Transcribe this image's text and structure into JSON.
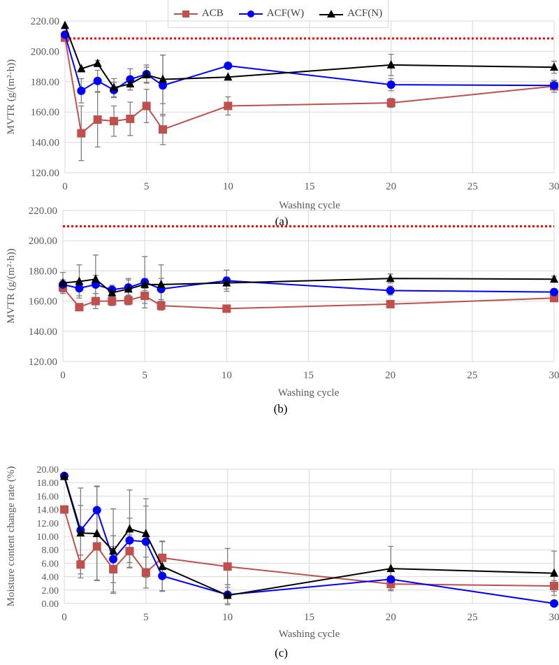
{
  "legend": [
    {
      "name": "ACB",
      "color": "#c0504d",
      "marker": "square"
    },
    {
      "name": "ACF(W)",
      "color": "#0000ff",
      "marker": "circle"
    },
    {
      "name": "ACF(N)",
      "color": "#000000",
      "marker": "triangle"
    }
  ],
  "reference_line_color": "#ff0000",
  "chart_data": [
    {
      "type": "line",
      "panel_label": "(a)",
      "xlabel": "Washing cycle",
      "ylabel": "MVTR (g/(m²·h))",
      "xlim": [
        0,
        30
      ],
      "ylim": [
        120,
        220
      ],
      "xticks": [
        0,
        5,
        10,
        15,
        20,
        25,
        30
      ],
      "yticks": [
        "120.00",
        "140.00",
        "160.00",
        "180.00",
        "200.00",
        "220.00"
      ],
      "grid": true,
      "reference_line": 208.5,
      "x": [
        0,
        1,
        2,
        3,
        4,
        5,
        6,
        10,
        20,
        30
      ],
      "series": [
        {
          "name": "ACB",
          "values": [
            209,
            146,
            155,
            154,
            155.5,
            164,
            148.5,
            164,
            166,
            177
          ],
          "error": [
            0,
            18,
            18,
            10,
            11,
            11,
            10,
            6,
            3,
            4
          ]
        },
        {
          "name": "ACF(W)",
          "values": [
            211,
            174,
            180.5,
            174.5,
            181.5,
            185,
            177.5,
            190.5,
            178,
            177.5
          ],
          "error": [
            0,
            8,
            7,
            5,
            7,
            6,
            20,
            0,
            4,
            3
          ]
        },
        {
          "name": "ACF(N)",
          "values": [
            217,
            188.5,
            192,
            176,
            178.5,
            184.5,
            181.5,
            183,
            191,
            189.5
          ],
          "error": [
            0,
            0,
            2,
            6,
            4,
            5,
            16,
            0,
            7,
            4
          ]
        }
      ]
    },
    {
      "type": "line",
      "panel_label": "(b)",
      "xlabel": "Washing cycle",
      "ylabel": "MVTR (g/(m²·h))",
      "xlim": [
        0,
        30
      ],
      "ylim": [
        120,
        220
      ],
      "xticks": [
        0,
        5,
        10,
        15,
        20,
        25,
        30
      ],
      "yticks": [
        "120.00",
        "140.00",
        "160.00",
        "180.00",
        "200.00",
        "220.00"
      ],
      "grid": true,
      "reference_line": 209.5,
      "x": [
        0,
        1,
        2,
        3,
        4,
        5,
        6,
        10,
        20,
        30
      ],
      "series": [
        {
          "name": "ACB",
          "values": [
            169,
            156,
            160,
            160,
            160.5,
            163.5,
            157,
            155,
            158,
            162
          ],
          "error": [
            3,
            2,
            5,
            3,
            3,
            5,
            3,
            0,
            1,
            1
          ]
        },
        {
          "name": "ACF(W)",
          "values": [
            171,
            168.5,
            171,
            167.5,
            169,
            172.5,
            168,
            173.5,
            167,
            166
          ],
          "error": [
            3,
            5,
            6,
            3,
            5,
            17,
            7,
            7,
            3,
            2
          ]
        },
        {
          "name": "ACF(N)",
          "values": [
            172,
            173,
            174.5,
            165.5,
            168,
            171,
            171,
            172,
            175,
            174.5
          ],
          "error": [
            7,
            11,
            16,
            3,
            7,
            4,
            13,
            4,
            3,
            2
          ]
        }
      ]
    },
    {
      "type": "line",
      "panel_label": "(c)",
      "xlabel": "Washing cycle",
      "ylabel": "Moisture content change rate (%)",
      "xlim": [
        0,
        30
      ],
      "ylim": [
        0,
        20
      ],
      "xticks": [
        0,
        5,
        10,
        15,
        20,
        25,
        30
      ],
      "yticks": [
        "0.00",
        "2.00",
        "4.00",
        "6.00",
        "8.00",
        "10.00",
        "12.00",
        "14.00",
        "16.00",
        "18.00",
        "20.00"
      ],
      "grid": true,
      "x": [
        0,
        1,
        2,
        3,
        4,
        5,
        6,
        10,
        20,
        30
      ],
      "series": [
        {
          "name": "ACB",
          "values": [
            14,
            5.8,
            8.5,
            5.1,
            7.8,
            4.6,
            6.8,
            5.5,
            2.9,
            2.6
          ],
          "error": [
            0,
            1.4,
            5,
            3.4,
            2.4,
            2.3,
            2.5,
            2.7,
            1,
            0.8
          ]
        },
        {
          "name": "ACF(W)",
          "values": [
            19,
            10.9,
            13.9,
            6.6,
            9.4,
            9.2,
            4.1,
            1.3,
            3.6,
            0
          ],
          "error": [
            0,
            3.7,
            3.6,
            3.5,
            3.3,
            5.3,
            2.2,
            1.5,
            1.5,
            0
          ]
        },
        {
          "name": "ACF(N)",
          "values": [
            18.9,
            10.5,
            10.4,
            7.8,
            11.1,
            10.4,
            5.5,
            1.2,
            5.2,
            4.5
          ],
          "error": [
            0,
            6.7,
            7,
            6.3,
            5.8,
            5.2,
            3.7,
            1.2,
            3.3,
            3.3
          ]
        }
      ]
    }
  ]
}
